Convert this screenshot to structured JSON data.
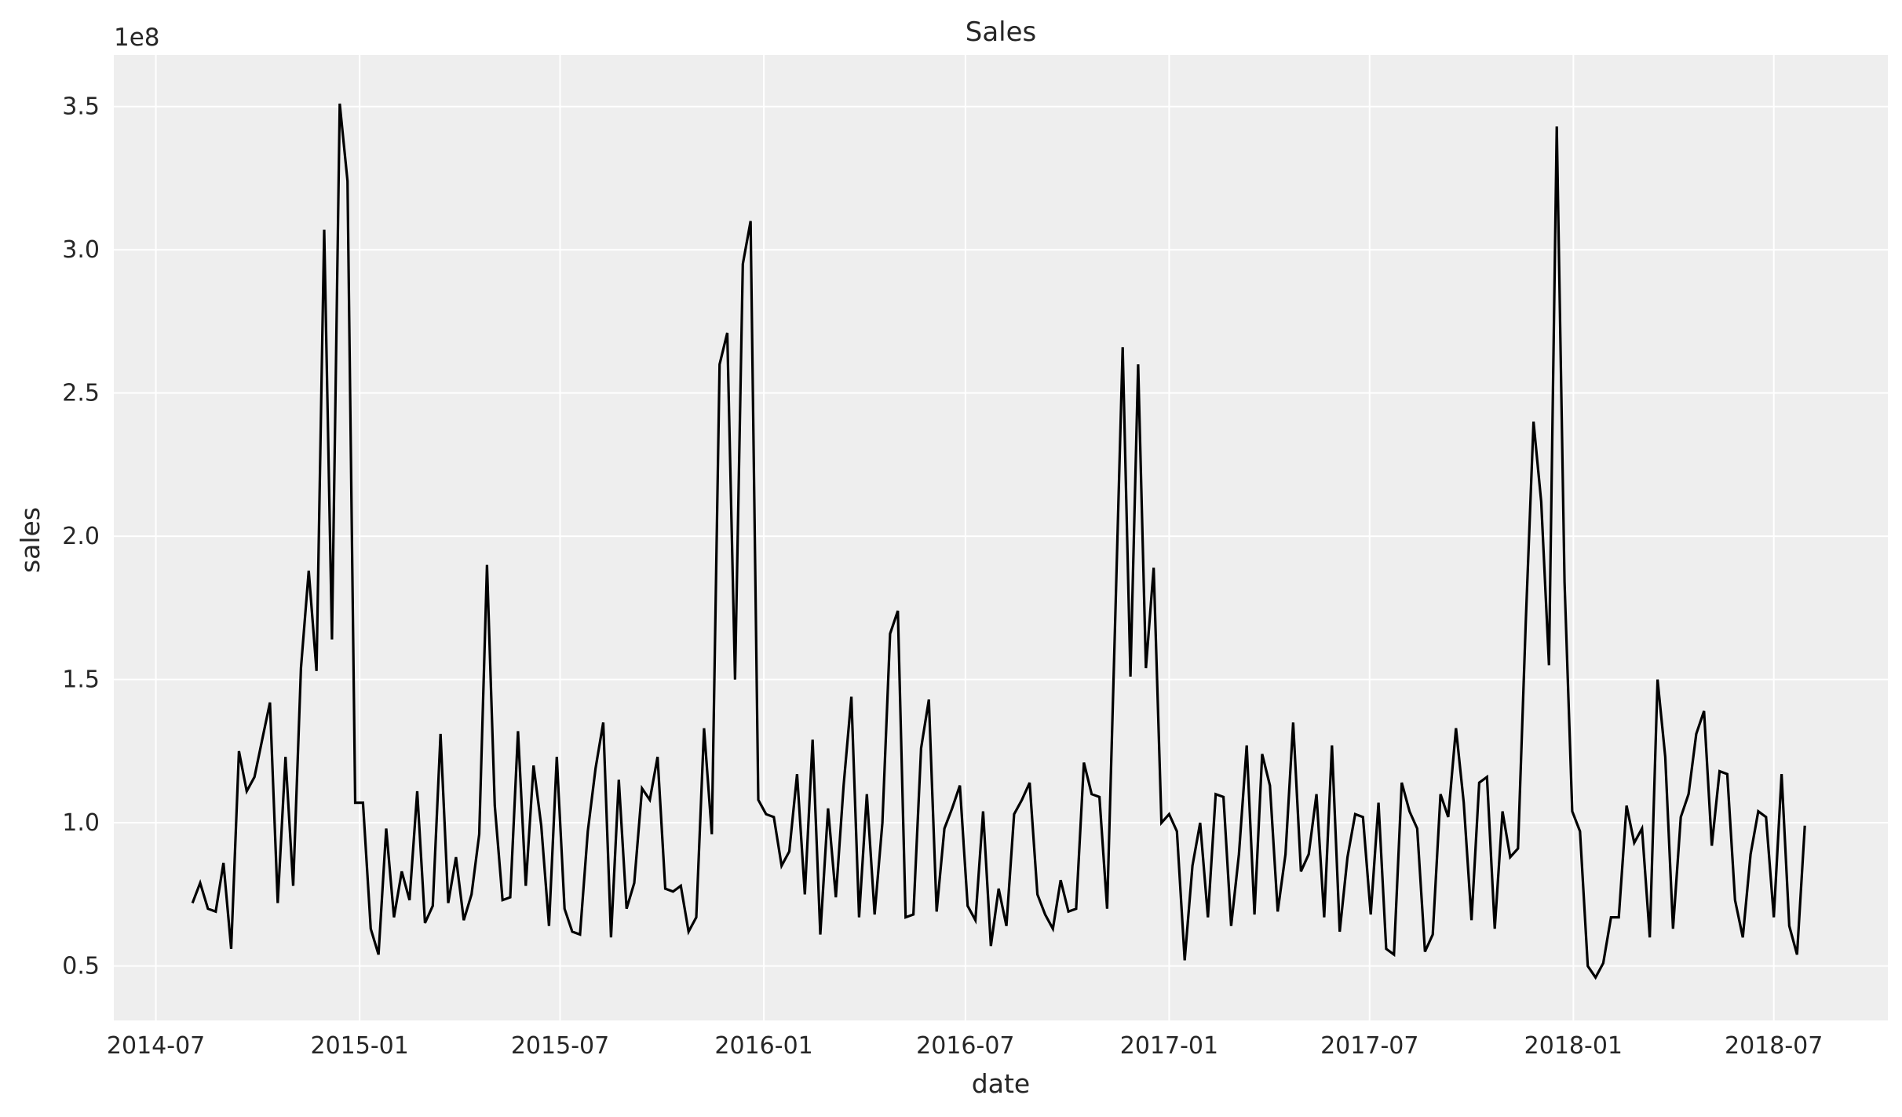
{
  "chart_data": {
    "type": "line",
    "title": "Sales",
    "xlabel": "date",
    "ylabel": "sales",
    "y_offset_label": "1e8",
    "y_unit_multiplier": 100000000,
    "x": {
      "start": "2014-08-03",
      "frequency": "weekly"
    },
    "xlim": [
      "2014-05-24",
      "2018-10-12"
    ],
    "ylim": [
      0.31,
      3.68
    ],
    "x_ticks": [
      "2014-07",
      "2015-01",
      "2015-07",
      "2016-01",
      "2016-07",
      "2017-01",
      "2017-07",
      "2018-01",
      "2018-07"
    ],
    "y_ticks": [
      "0.5",
      "1.0",
      "1.5",
      "2.0",
      "2.5",
      "3.0",
      "3.5"
    ],
    "grid": true,
    "line_color": "#000000",
    "axes_background": "#eeeeee",
    "grid_color": "#ffffff",
    "series": [
      {
        "values": [
          0.72,
          0.79,
          0.7,
          0.69,
          0.86,
          0.56,
          1.25,
          1.11,
          1.16,
          1.29,
          1.42,
          0.72,
          1.23,
          0.78,
          1.54,
          1.88,
          1.53,
          3.07,
          1.64,
          3.51,
          3.24,
          1.07,
          1.07,
          0.63,
          0.54,
          0.98,
          0.67,
          0.83,
          0.73,
          1.11,
          0.65,
          0.71,
          1.31,
          0.72,
          0.88,
          0.66,
          0.75,
          0.96,
          1.9,
          1.06,
          0.73,
          0.74,
          1.32,
          0.78,
          1.2,
          0.99,
          0.64,
          1.23,
          0.7,
          0.62,
          0.61,
          0.97,
          1.19,
          1.35,
          0.6,
          1.15,
          0.7,
          0.79,
          1.12,
          1.08,
          1.23,
          0.77,
          0.76,
          0.78,
          0.62,
          0.67,
          1.33,
          0.96,
          2.6,
          2.71,
          1.5,
          2.95,
          3.1,
          1.08,
          1.03,
          1.02,
          0.85,
          0.9,
          1.17,
          0.75,
          1.29,
          0.61,
          1.05,
          0.74,
          1.13,
          1.44,
          0.67,
          1.1,
          0.68,
          1.0,
          1.66,
          1.74,
          0.67,
          0.68,
          1.26,
          1.43,
          0.69,
          0.98,
          1.05,
          1.13,
          0.71,
          0.66,
          1.04,
          0.57,
          0.77,
          0.64,
          1.03,
          1.08,
          1.14,
          0.75,
          0.68,
          0.63,
          0.8,
          0.69,
          0.7,
          1.21,
          1.1,
          1.09,
          0.7,
          1.67,
          2.66,
          1.51,
          2.6,
          1.54,
          1.89,
          1.0,
          1.03,
          0.97,
          0.52,
          0.85,
          1.0,
          0.67,
          1.1,
          1.09,
          0.64,
          0.89,
          1.27,
          0.68,
          1.24,
          1.13,
          0.69,
          0.89,
          1.35,
          0.83,
          0.89,
          1.1,
          0.67,
          1.27,
          0.62,
          0.88,
          1.03,
          1.02,
          0.68,
          1.07,
          0.56,
          0.54,
          1.14,
          1.04,
          0.98,
          0.55,
          0.61,
          1.1,
          1.02,
          1.33,
          1.07,
          0.66,
          1.14,
          1.16,
          0.63,
          1.04,
          0.88,
          0.91,
          1.7,
          2.4,
          2.12,
          1.55,
          3.43,
          1.84,
          1.04,
          0.97,
          0.5,
          0.46,
          0.51,
          0.67,
          0.67,
          1.06,
          0.93,
          0.98,
          0.6,
          1.5,
          1.23,
          0.63,
          1.02,
          1.1,
          1.31,
          1.39,
          0.92,
          1.18,
          1.17,
          0.73,
          0.6,
          0.89,
          1.04,
          1.02,
          0.67,
          1.17,
          0.64,
          0.54,
          0.99
        ]
      }
    ]
  }
}
